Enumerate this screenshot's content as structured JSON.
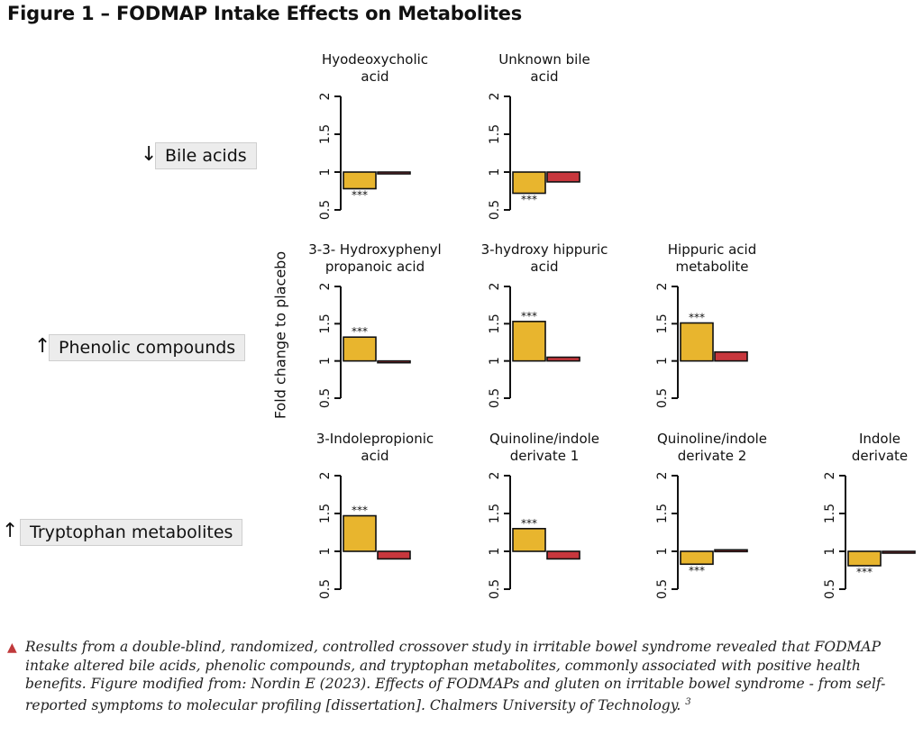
{
  "figure_title": "Figure 1 – FODMAP Intake Effects on Metabolites",
  "y_axis_label": "Fold change to placebo",
  "groups": [
    {
      "label": "Bile acids",
      "arrow": "↓"
    },
    {
      "label": "Phenolic compounds",
      "arrow": "↑"
    },
    {
      "label": "Tryptophan metabolites",
      "arrow": "↑↓"
    }
  ],
  "caption": {
    "text": "Results from a double-blind, randomized, controlled crossover study in irritable bowel syndrome revealed that FODMAP intake altered bile acids, phenolic compounds, and tryptophan metabolites, commonly associated with positive health benefits. Figure modified from: Nordin E (2023). Effects of FODMAPs and gluten on irritable bowel syndrome - from self-reported symptoms to molecular profiling [dissertation]. Chalmers University of Technology.",
    "ref": "3"
  },
  "colors": {
    "bar_primary": "#E8B52E",
    "bar_secondary": "#C8373D",
    "caption_marker": "#C0393B"
  },
  "chart_data": [
    {
      "type": "bar",
      "group": "Bile acids",
      "title": [
        "Hyodeoxycholic",
        "acid"
      ],
      "values": [
        0.78,
        1.0
      ],
      "significance": [
        "***",
        ""
      ],
      "ylim": [
        0.5,
        2
      ],
      "yticks": [
        "0.5",
        "1",
        "1.5",
        "2"
      ]
    },
    {
      "type": "bar",
      "group": "Bile acids",
      "title": [
        "Unknown bile",
        "acid"
      ],
      "values": [
        0.72,
        0.87
      ],
      "significance": [
        "***",
        ""
      ],
      "ylim": [
        0.5,
        2
      ],
      "yticks": [
        "0.5",
        "1",
        "1.5",
        "2"
      ]
    },
    {
      "type": "bar",
      "group": "Phenolic compounds",
      "title": [
        "3-3- Hydroxyphenyl",
        "propanoic acid"
      ],
      "values": [
        1.32,
        1.0
      ],
      "significance": [
        "***",
        ""
      ],
      "ylim": [
        0.5,
        2
      ],
      "yticks": [
        "0.5",
        "1",
        "1.5",
        "2"
      ]
    },
    {
      "type": "bar",
      "group": "Phenolic compounds",
      "title": [
        "3-hydroxy hippuric",
        "acid"
      ],
      "values": [
        1.53,
        1.05
      ],
      "significance": [
        "***",
        ""
      ],
      "ylim": [
        0.5,
        2
      ],
      "yticks": [
        "0.5",
        "1",
        "1.5",
        "2"
      ]
    },
    {
      "type": "bar",
      "group": "Phenolic compounds",
      "title": [
        "Hippuric acid",
        "metabolite"
      ],
      "values": [
        1.51,
        1.12
      ],
      "significance": [
        "***",
        ""
      ],
      "ylim": [
        0.5,
        2
      ],
      "yticks": [
        "0.5",
        "1",
        "1.5",
        "2"
      ]
    },
    {
      "type": "bar",
      "group": "Tryptophan metabolites",
      "title": [
        "3-Indolepropionic",
        "acid"
      ],
      "values": [
        1.47,
        0.9
      ],
      "significance": [
        "***",
        ""
      ],
      "ylim": [
        0.5,
        2
      ],
      "yticks": [
        "0.5",
        "1",
        "1.5",
        "2"
      ]
    },
    {
      "type": "bar",
      "group": "Tryptophan metabolites",
      "title": [
        "Quinoline/indole",
        "derivate 1"
      ],
      "values": [
        1.3,
        0.9
      ],
      "significance": [
        "***",
        ""
      ],
      "ylim": [
        0.5,
        2
      ],
      "yticks": [
        "0.5",
        "1",
        "1.5",
        "2"
      ]
    },
    {
      "type": "bar",
      "group": "Tryptophan metabolites",
      "title": [
        "Quinoline/indole",
        "derivate 2"
      ],
      "values": [
        0.83,
        1.02
      ],
      "significance": [
        "***",
        ""
      ],
      "ylim": [
        0.5,
        2
      ],
      "yticks": [
        "0.5",
        "1",
        "1.5",
        "2"
      ]
    },
    {
      "type": "bar",
      "group": "Tryptophan metabolites",
      "title": [
        "Indole",
        "derivate"
      ],
      "values": [
        0.81,
        1.0
      ],
      "significance": [
        "***",
        ""
      ],
      "ylim": [
        0.5,
        2
      ],
      "yticks": [
        "0.5",
        "1",
        "1.5",
        "2"
      ]
    }
  ]
}
